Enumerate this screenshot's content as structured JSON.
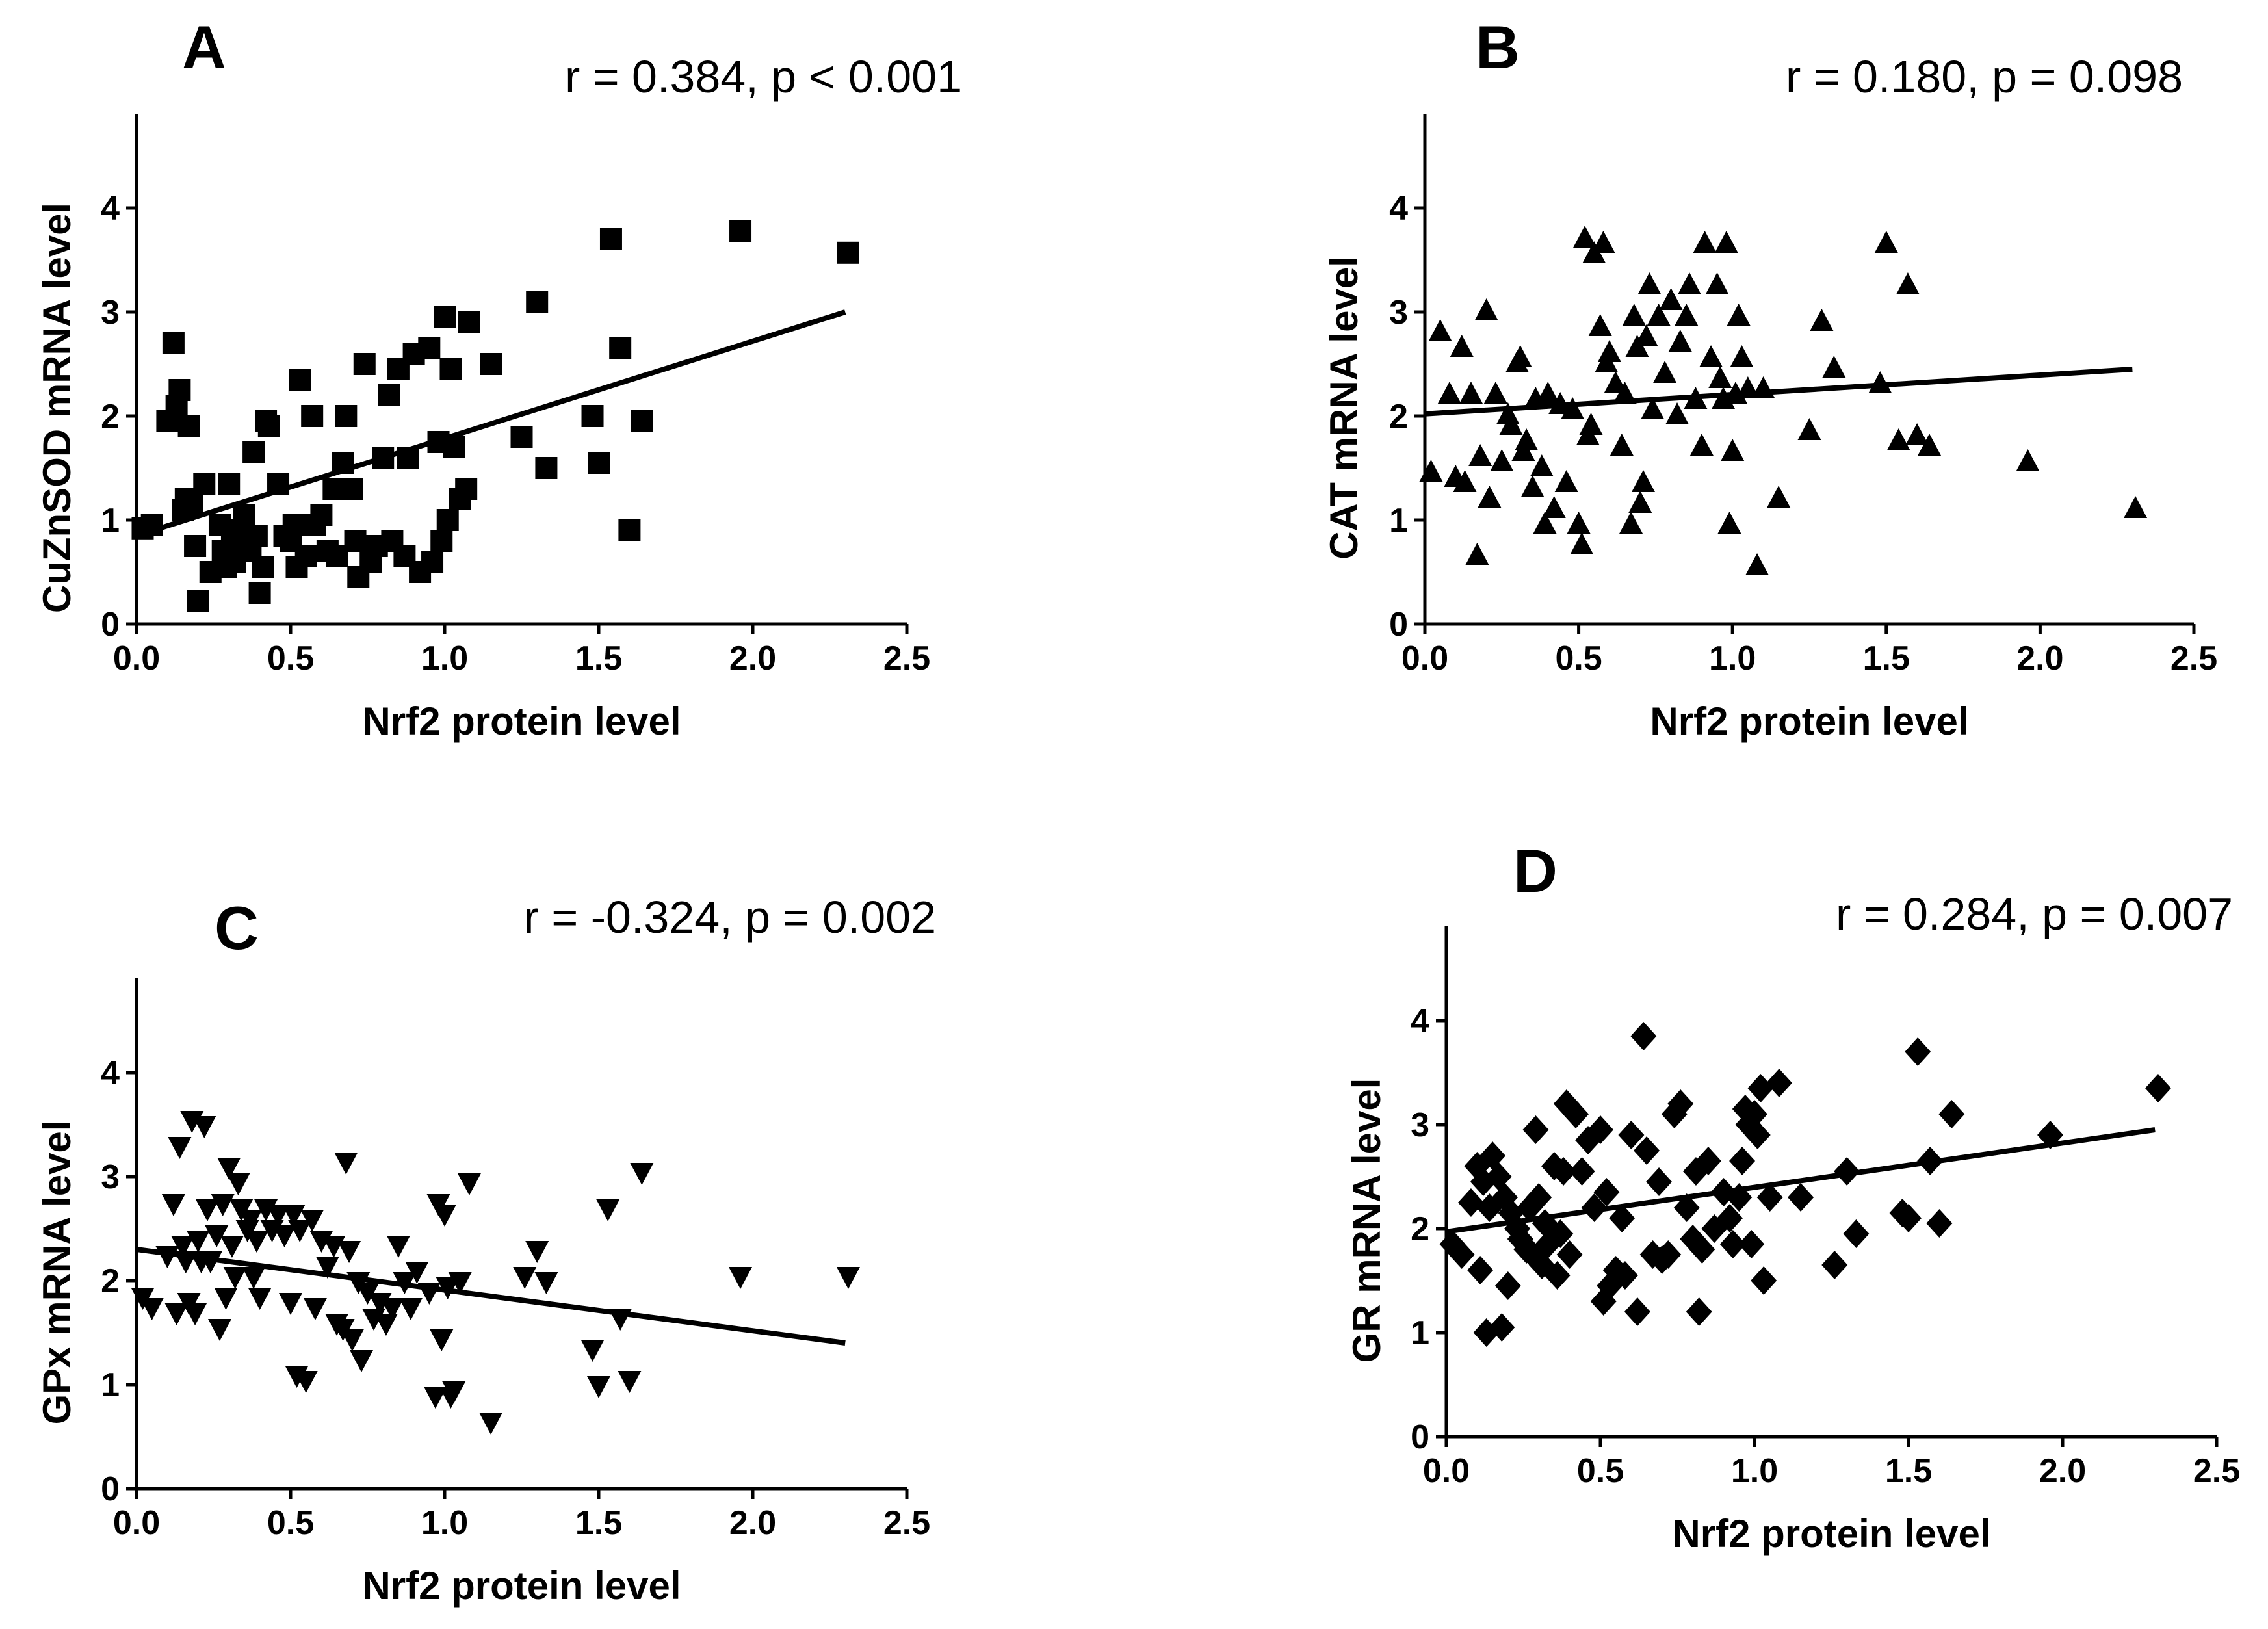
{
  "chart_data": [
    {
      "panel": "A",
      "type": "scatter",
      "marker": "square",
      "stat": "r = 0.384, p < 0.001",
      "xlabel": "Nrf2 protein level",
      "ylabel": "CuZnSOD mRNA level",
      "xlim": [
        0,
        2.5
      ],
      "ylim": [
        0,
        5
      ],
      "xticks": [
        "0.0",
        "0.5",
        "1.0",
        "1.5",
        "2.0",
        "2.5"
      ],
      "yticks": [
        "0",
        "1",
        "2",
        "3",
        "4"
      ],
      "fit": {
        "x": [
          0,
          2.3
        ],
        "y": [
          0.85,
          3.0
        ]
      },
      "points": [
        [
          0.02,
          0.92
        ],
        [
          0.05,
          0.95
        ],
        [
          0.1,
          1.95
        ],
        [
          0.12,
          2.7
        ],
        [
          0.13,
          2.1
        ],
        [
          0.14,
          2.25
        ],
        [
          0.15,
          1.1
        ],
        [
          0.16,
          1.2
        ],
        [
          0.17,
          1.9
        ],
        [
          0.18,
          1.15
        ],
        [
          0.19,
          0.75
        ],
        [
          0.2,
          0.22
        ],
        [
          0.22,
          1.35
        ],
        [
          0.24,
          0.5
        ],
        [
          0.27,
          0.95
        ],
        [
          0.28,
          0.7
        ],
        [
          0.29,
          0.55
        ],
        [
          0.3,
          1.35
        ],
        [
          0.31,
          0.8
        ],
        [
          0.32,
          0.6
        ],
        [
          0.34,
          0.9
        ],
        [
          0.35,
          1.05
        ],
        [
          0.36,
          0.85
        ],
        [
          0.37,
          0.7
        ],
        [
          0.38,
          1.65
        ],
        [
          0.39,
          0.85
        ],
        [
          0.4,
          0.3
        ],
        [
          0.41,
          0.55
        ],
        [
          0.42,
          1.95
        ],
        [
          0.43,
          1.9
        ],
        [
          0.46,
          1.35
        ],
        [
          0.48,
          0.85
        ],
        [
          0.5,
          0.8
        ],
        [
          0.51,
          0.95
        ],
        [
          0.52,
          0.55
        ],
        [
          0.53,
          2.35
        ],
        [
          0.55,
          0.65
        ],
        [
          0.57,
          2.0
        ],
        [
          0.58,
          0.95
        ],
        [
          0.6,
          1.05
        ],
        [
          0.62,
          0.7
        ],
        [
          0.64,
          1.3
        ],
        [
          0.65,
          0.65
        ],
        [
          0.67,
          1.55
        ],
        [
          0.68,
          2.0
        ],
        [
          0.7,
          1.3
        ],
        [
          0.71,
          0.8
        ],
        [
          0.72,
          0.45
        ],
        [
          0.74,
          2.5
        ],
        [
          0.76,
          0.6
        ],
        [
          0.78,
          0.75
        ],
        [
          0.8,
          1.6
        ],
        [
          0.82,
          2.2
        ],
        [
          0.83,
          0.8
        ],
        [
          0.85,
          2.45
        ],
        [
          0.87,
          0.65
        ],
        [
          0.88,
          1.6
        ],
        [
          0.9,
          2.6
        ],
        [
          0.92,
          0.5
        ],
        [
          0.95,
          2.65
        ],
        [
          0.96,
          0.6
        ],
        [
          0.98,
          1.75
        ],
        [
          0.99,
          0.8
        ],
        [
          1.0,
          2.95
        ],
        [
          1.01,
          1.0
        ],
        [
          1.02,
          2.45
        ],
        [
          1.03,
          1.7
        ],
        [
          1.05,
          1.2
        ],
        [
          1.07,
          1.3
        ],
        [
          1.08,
          2.9
        ],
        [
          1.15,
          2.5
        ],
        [
          1.25,
          1.8
        ],
        [
          1.3,
          3.1
        ],
        [
          1.33,
          1.5
        ],
        [
          1.48,
          2.0
        ],
        [
          1.5,
          1.55
        ],
        [
          1.54,
          3.7
        ],
        [
          1.57,
          2.65
        ],
        [
          1.6,
          0.9
        ],
        [
          1.64,
          1.95
        ],
        [
          1.96,
          3.78
        ],
        [
          2.31,
          3.57
        ]
      ]
    },
    {
      "panel": "B",
      "type": "scatter",
      "marker": "triangle-up",
      "stat": "r = 0.180, p = 0.098",
      "xlabel": "Nrf2 protein level",
      "ylabel": "CAT mRNA level",
      "xlim": [
        0,
        2.5
      ],
      "ylim": [
        0,
        5
      ],
      "xticks": [
        "0.0",
        "0.5",
        "1.0",
        "1.5",
        "2.0",
        "2.5"
      ],
      "yticks": [
        "0",
        "1",
        "2",
        "3",
        "4"
      ],
      "fit": {
        "x": [
          0,
          2.3
        ],
        "y": [
          2.02,
          2.45
        ]
      },
      "points": [
        [
          0.02,
          1.45
        ],
        [
          0.05,
          2.8
        ],
        [
          0.08,
          2.2
        ],
        [
          0.1,
          1.4
        ],
        [
          0.12,
          2.65
        ],
        [
          0.13,
          1.35
        ],
        [
          0.15,
          2.2
        ],
        [
          0.17,
          0.65
        ],
        [
          0.18,
          1.6
        ],
        [
          0.2,
          3.0
        ],
        [
          0.21,
          1.2
        ],
        [
          0.23,
          2.2
        ],
        [
          0.25,
          1.55
        ],
        [
          0.27,
          2.0
        ],
        [
          0.28,
          1.9
        ],
        [
          0.3,
          2.5
        ],
        [
          0.31,
          2.55
        ],
        [
          0.32,
          1.65
        ],
        [
          0.33,
          1.75
        ],
        [
          0.35,
          1.3
        ],
        [
          0.36,
          2.15
        ],
        [
          0.38,
          1.5
        ],
        [
          0.39,
          0.95
        ],
        [
          0.4,
          2.2
        ],
        [
          0.42,
          1.1
        ],
        [
          0.44,
          2.1
        ],
        [
          0.46,
          1.35
        ],
        [
          0.48,
          2.05
        ],
        [
          0.5,
          0.95
        ],
        [
          0.51,
          0.75
        ],
        [
          0.52,
          3.7
        ],
        [
          0.53,
          1.8
        ],
        [
          0.54,
          1.9
        ],
        [
          0.55,
          3.55
        ],
        [
          0.57,
          2.85
        ],
        [
          0.58,
          3.65
        ],
        [
          0.59,
          2.5
        ],
        [
          0.6,
          2.6
        ],
        [
          0.62,
          2.3
        ],
        [
          0.64,
          1.7
        ],
        [
          0.65,
          2.2
        ],
        [
          0.67,
          0.95
        ],
        [
          0.68,
          2.95
        ],
        [
          0.69,
          2.65
        ],
        [
          0.7,
          1.15
        ],
        [
          0.71,
          1.35
        ],
        [
          0.72,
          2.75
        ],
        [
          0.73,
          3.25
        ],
        [
          0.74,
          2.05
        ],
        [
          0.76,
          2.95
        ],
        [
          0.78,
          2.4
        ],
        [
          0.8,
          3.1
        ],
        [
          0.82,
          2.0
        ],
        [
          0.83,
          2.7
        ],
        [
          0.85,
          2.95
        ],
        [
          0.86,
          3.25
        ],
        [
          0.88,
          2.15
        ],
        [
          0.9,
          1.7
        ],
        [
          0.91,
          3.65
        ],
        [
          0.93,
          2.55
        ],
        [
          0.95,
          3.25
        ],
        [
          0.96,
          2.35
        ],
        [
          0.97,
          2.15
        ],
        [
          0.98,
          3.65
        ],
        [
          0.99,
          0.95
        ],
        [
          1.0,
          1.65
        ],
        [
          1.01,
          2.2
        ],
        [
          1.02,
          2.95
        ],
        [
          1.03,
          2.55
        ],
        [
          1.05,
          2.25
        ],
        [
          1.08,
          0.55
        ],
        [
          1.1,
          2.25
        ],
        [
          1.15,
          1.2
        ],
        [
          1.25,
          1.85
        ],
        [
          1.29,
          2.9
        ],
        [
          1.33,
          2.45
        ],
        [
          1.48,
          2.3
        ],
        [
          1.5,
          3.65
        ],
        [
          1.54,
          1.75
        ],
        [
          1.57,
          3.25
        ],
        [
          1.6,
          1.8
        ],
        [
          1.64,
          1.7
        ],
        [
          1.96,
          1.55
        ],
        [
          2.31,
          1.1
        ]
      ]
    },
    {
      "panel": "C",
      "type": "scatter",
      "marker": "triangle-down",
      "stat": "r = -0.324, p = 0.002",
      "xlabel": "Nrf2 protein level",
      "ylabel": "GPx mRNA level",
      "xlim": [
        0,
        2.5
      ],
      "ylim": [
        0,
        5
      ],
      "xticks": [
        "0.0",
        "0.5",
        "1.0",
        "1.5",
        "2.0",
        "2.5"
      ],
      "yticks": [
        "0",
        "1",
        "2",
        "3",
        "4"
      ],
      "fit": {
        "x": [
          0,
          2.3
        ],
        "y": [
          2.3,
          1.4
        ]
      },
      "points": [
        [
          0.02,
          1.85
        ],
        [
          0.05,
          1.75
        ],
        [
          0.1,
          2.25
        ],
        [
          0.12,
          2.75
        ],
        [
          0.13,
          1.7
        ],
        [
          0.14,
          3.3
        ],
        [
          0.15,
          2.35
        ],
        [
          0.16,
          2.2
        ],
        [
          0.17,
          1.8
        ],
        [
          0.18,
          3.55
        ],
        [
          0.19,
          1.7
        ],
        [
          0.2,
          2.4
        ],
        [
          0.21,
          2.2
        ],
        [
          0.22,
          3.5
        ],
        [
          0.23,
          2.7
        ],
        [
          0.24,
          2.2
        ],
        [
          0.26,
          2.45
        ],
        [
          0.27,
          1.55
        ],
        [
          0.28,
          2.75
        ],
        [
          0.29,
          1.85
        ],
        [
          0.3,
          3.1
        ],
        [
          0.31,
          2.35
        ],
        [
          0.32,
          2.05
        ],
        [
          0.33,
          2.95
        ],
        [
          0.34,
          2.7
        ],
        [
          0.36,
          2.5
        ],
        [
          0.37,
          2.6
        ],
        [
          0.38,
          2.05
        ],
        [
          0.39,
          2.4
        ],
        [
          0.4,
          1.85
        ],
        [
          0.42,
          2.7
        ],
        [
          0.44,
          2.5
        ],
        [
          0.46,
          2.65
        ],
        [
          0.48,
          2.45
        ],
        [
          0.5,
          1.8
        ],
        [
          0.51,
          2.65
        ],
        [
          0.52,
          1.1
        ],
        [
          0.53,
          2.5
        ],
        [
          0.55,
          1.05
        ],
        [
          0.57,
          2.6
        ],
        [
          0.58,
          1.75
        ],
        [
          0.6,
          2.4
        ],
        [
          0.62,
          2.15
        ],
        [
          0.64,
          2.35
        ],
        [
          0.65,
          1.6
        ],
        [
          0.67,
          1.55
        ],
        [
          0.68,
          3.15
        ],
        [
          0.69,
          2.3
        ],
        [
          0.7,
          1.45
        ],
        [
          0.72,
          2.0
        ],
        [
          0.73,
          1.25
        ],
        [
          0.75,
          1.9
        ],
        [
          0.77,
          1.65
        ],
        [
          0.79,
          1.8
        ],
        [
          0.81,
          1.6
        ],
        [
          0.83,
          1.75
        ],
        [
          0.85,
          2.35
        ],
        [
          0.87,
          2.0
        ],
        [
          0.89,
          1.75
        ],
        [
          0.91,
          2.1
        ],
        [
          0.95,
          1.9
        ],
        [
          0.97,
          0.9
        ],
        [
          0.98,
          2.75
        ],
        [
          0.99,
          1.45
        ],
        [
          1.0,
          2.65
        ],
        [
          1.01,
          1.95
        ],
        [
          1.02,
          0.9
        ],
        [
          1.03,
          0.95
        ],
        [
          1.05,
          2.0
        ],
        [
          1.08,
          2.95
        ],
        [
          1.15,
          0.65
        ],
        [
          1.26,
          2.05
        ],
        [
          1.3,
          2.3
        ],
        [
          1.33,
          2.0
        ],
        [
          1.48,
          1.35
        ],
        [
          1.5,
          1.0
        ],
        [
          1.53,
          2.7
        ],
        [
          1.57,
          1.65
        ],
        [
          1.6,
          1.05
        ],
        [
          1.64,
          3.05
        ],
        [
          1.96,
          2.05
        ],
        [
          2.31,
          2.05
        ]
      ]
    },
    {
      "panel": "D",
      "type": "scatter",
      "marker": "diamond",
      "stat": "r = 0.284, p = 0.007",
      "xlabel": "Nrf2 protein level",
      "ylabel": "GR mRNA level",
      "xlim": [
        0,
        2.5
      ],
      "ylim": [
        0,
        5
      ],
      "xticks": [
        "0.0",
        "0.5",
        "1.0",
        "1.5",
        "2.0",
        "2.5"
      ],
      "yticks": [
        "0",
        "1",
        "2",
        "3",
        "4"
      ],
      "fit": {
        "x": [
          0,
          2.3
        ],
        "y": [
          1.97,
          2.95
        ]
      },
      "points": [
        [
          0.02,
          1.85
        ],
        [
          0.05,
          1.75
        ],
        [
          0.08,
          2.25
        ],
        [
          0.1,
          2.6
        ],
        [
          0.11,
          1.6
        ],
        [
          0.12,
          2.45
        ],
        [
          0.13,
          1.0
        ],
        [
          0.14,
          2.2
        ],
        [
          0.15,
          2.7
        ],
        [
          0.17,
          2.5
        ],
        [
          0.18,
          1.05
        ],
        [
          0.19,
          2.3
        ],
        [
          0.2,
          1.45
        ],
        [
          0.21,
          2.15
        ],
        [
          0.23,
          2.0
        ],
        [
          0.24,
          1.9
        ],
        [
          0.26,
          1.8
        ],
        [
          0.27,
          2.2
        ],
        [
          0.28,
          1.75
        ],
        [
          0.29,
          2.95
        ],
        [
          0.3,
          2.3
        ],
        [
          0.31,
          1.65
        ],
        [
          0.32,
          2.05
        ],
        [
          0.33,
          1.85
        ],
        [
          0.35,
          2.6
        ],
        [
          0.36,
          1.55
        ],
        [
          0.37,
          1.95
        ],
        [
          0.38,
          2.55
        ],
        [
          0.39,
          3.2
        ],
        [
          0.4,
          1.75
        ],
        [
          0.42,
          3.1
        ],
        [
          0.44,
          2.55
        ],
        [
          0.46,
          2.85
        ],
        [
          0.48,
          2.2
        ],
        [
          0.5,
          2.95
        ],
        [
          0.51,
          1.3
        ],
        [
          0.52,
          2.35
        ],
        [
          0.53,
          1.45
        ],
        [
          0.55,
          1.6
        ],
        [
          0.57,
          2.1
        ],
        [
          0.58,
          1.55
        ],
        [
          0.6,
          2.9
        ],
        [
          0.62,
          1.2
        ],
        [
          0.64,
          3.85
        ],
        [
          0.65,
          2.75
        ],
        [
          0.67,
          1.75
        ],
        [
          0.69,
          2.45
        ],
        [
          0.7,
          1.7
        ],
        [
          0.72,
          1.75
        ],
        [
          0.74,
          3.1
        ],
        [
          0.76,
          3.2
        ],
        [
          0.78,
          2.2
        ],
        [
          0.8,
          1.9
        ],
        [
          0.81,
          2.55
        ],
        [
          0.82,
          1.2
        ],
        [
          0.83,
          1.8
        ],
        [
          0.85,
          2.65
        ],
        [
          0.87,
          2.0
        ],
        [
          0.9,
          2.35
        ],
        [
          0.92,
          2.1
        ],
        [
          0.93,
          1.85
        ],
        [
          0.95,
          2.3
        ],
        [
          0.96,
          2.65
        ],
        [
          0.97,
          3.15
        ],
        [
          0.98,
          3.0
        ],
        [
          0.99,
          1.85
        ],
        [
          1.0,
          3.1
        ],
        [
          1.01,
          2.9
        ],
        [
          1.02,
          3.35
        ],
        [
          1.03,
          1.5
        ],
        [
          1.05,
          2.3
        ],
        [
          1.08,
          3.4
        ],
        [
          1.15,
          2.3
        ],
        [
          1.26,
          1.65
        ],
        [
          1.3,
          2.55
        ],
        [
          1.33,
          1.95
        ],
        [
          1.48,
          2.15
        ],
        [
          1.5,
          2.1
        ],
        [
          1.53,
          3.7
        ],
        [
          1.57,
          2.65
        ],
        [
          1.6,
          2.05
        ],
        [
          1.64,
          3.1
        ],
        [
          1.96,
          2.9
        ],
        [
          2.31,
          3.35
        ]
      ]
    }
  ]
}
